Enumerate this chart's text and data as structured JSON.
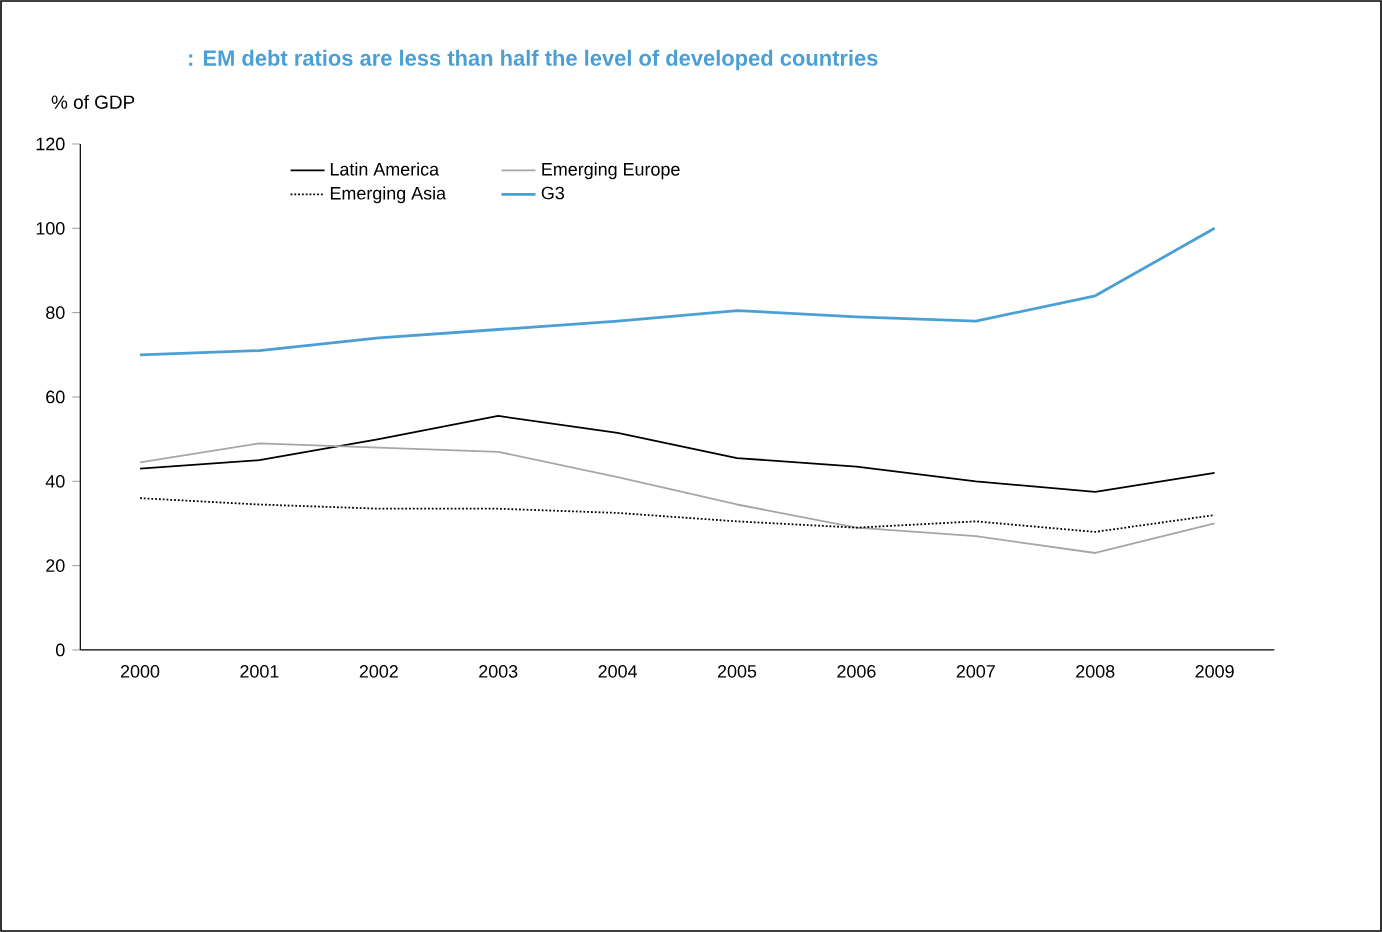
{
  "chart_data": {
    "type": "line",
    "title": ": EM debt ratios are less than half the level of developed countries",
    "ylabel": "% of GDP",
    "categories": [
      "2000",
      "2001",
      "2002",
      "2003",
      "2004",
      "2005",
      "2006",
      "2007",
      "2008",
      "2009"
    ],
    "series": [
      {
        "name": "Latin America",
        "color": "#000000",
        "line_style": "solid",
        "values": [
          43,
          45,
          50,
          55.5,
          51.5,
          45.5,
          43.5,
          40,
          37.5,
          42
        ]
      },
      {
        "name": "Emerging Europe",
        "color": "#a6a6a6",
        "line_style": "solid",
        "values": [
          44.5,
          49,
          48,
          47,
          41,
          34.5,
          29,
          27,
          23,
          30
        ]
      },
      {
        "name": "Emerging Asia",
        "color": "#000000",
        "line_style": "dotted",
        "values": [
          36,
          34.5,
          33.5,
          33.5,
          32.5,
          30.5,
          29,
          30.5,
          28,
          32
        ]
      },
      {
        "name": "G3",
        "color": "#4a9fd5",
        "line_style": "solid",
        "values": [
          70,
          71,
          74,
          76,
          78,
          80.5,
          79,
          78,
          84,
          100
        ]
      }
    ],
    "ylim": [
      0,
      120
    ],
    "yticks": [
      0,
      20,
      40,
      60,
      80,
      100,
      120
    ],
    "grid": false,
    "legend": "top left",
    "marker": "none"
  }
}
